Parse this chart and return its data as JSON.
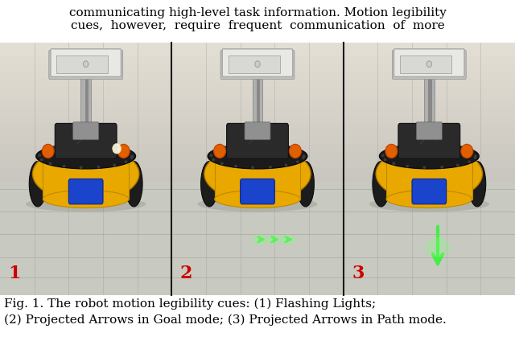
{
  "title_text_line1": "communicating high-level task information. Motion legibility",
  "title_text_line2": "cues,  however,  require  frequent  communication  of  more",
  "caption_line1": "Fig. 1. The robot motion legibility cues: (1) Flashing Lights;",
  "caption_line2": "(2) Projected Arrows in Goal mode; (3) Projected Arrows in Path mode.",
  "panel_labels": [
    "1",
    "2",
    "3"
  ],
  "panel_label_color": "#cc0000",
  "background_color": "#ffffff",
  "divider_color": "#1a1a1a",
  "bg_upper": "#dddbd5",
  "bg_lower": "#c8c9bf",
  "floor_color": "#d0cfc8",
  "tile_line_color": "#b0b0a8",
  "font_size_text": 11,
  "font_size_caption": 11,
  "font_size_label": 16,
  "robot_yellow": "#e8a800",
  "robot_black": "#1a1a1a",
  "robot_silver": "#a0a0a0",
  "robot_dark_silver": "#707070",
  "screen_color": "#e0e0dc",
  "orange_light": "#e06000",
  "blue_accent": "#1a44cc",
  "wheel_color": "#222222",
  "green_arrow": "#44dd44"
}
